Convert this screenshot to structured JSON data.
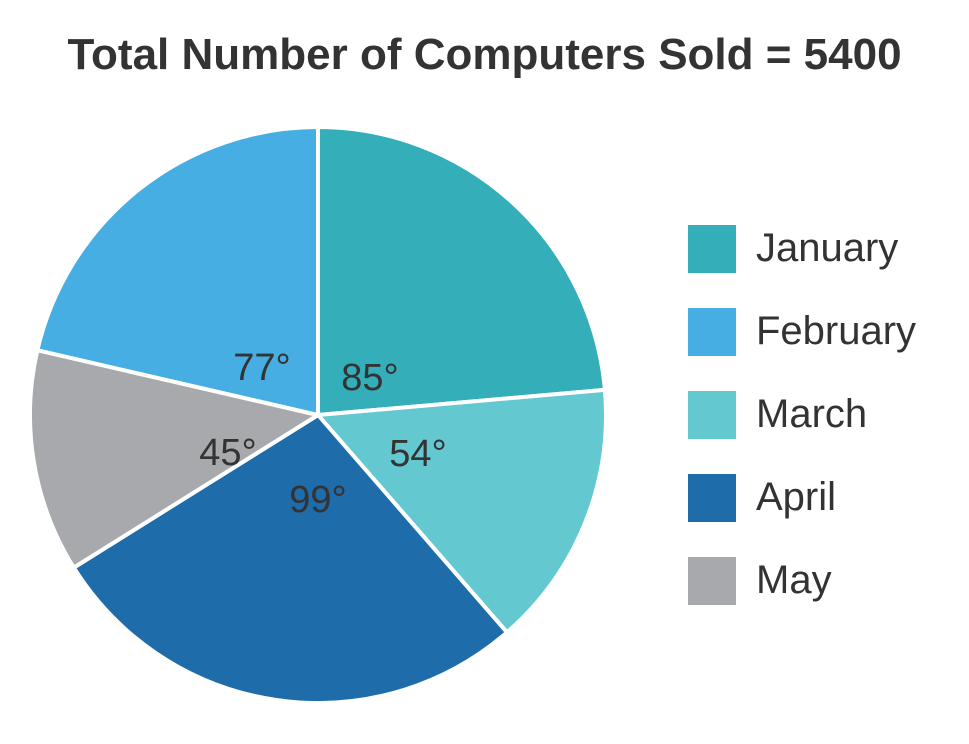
{
  "chart_data": {
    "type": "pie",
    "title": "Total Number of Computers Sold = 5400",
    "unit": "°",
    "slices": [
      {
        "name": "January",
        "value": 85,
        "label": "85°",
        "color": "#34afb9"
      },
      {
        "name": "March",
        "value": 54,
        "label": "54°",
        "color": "#63c8d0"
      },
      {
        "name": "April",
        "value": 99,
        "label": "99°",
        "color": "#1f6cab"
      },
      {
        "name": "May",
        "value": 45,
        "label": "45°",
        "color": "#a7a9ac"
      },
      {
        "name": "February",
        "value": 77,
        "label": "77°",
        "color": "#46aee3"
      }
    ],
    "legend": {
      "placement": "right",
      "entries": [
        {
          "name": "January",
          "color": "#34afb9"
        },
        {
          "name": "February",
          "color": "#46aee3"
        },
        {
          "name": "March",
          "color": "#63c8d0"
        },
        {
          "name": "April",
          "color": "#1f6cab"
        },
        {
          "name": "May",
          "color": "#a7a9ac"
        }
      ]
    }
  }
}
